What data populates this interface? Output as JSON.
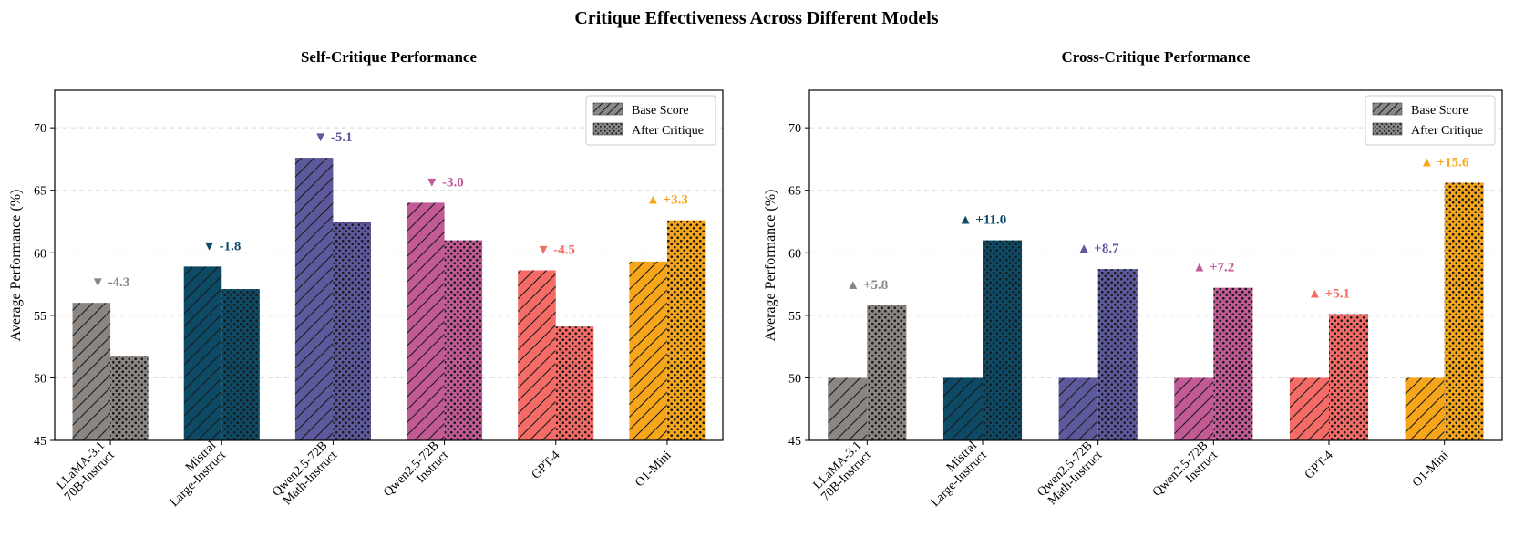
{
  "figure_title": "Critique Effectiveness Across Different Models",
  "chart_data": [
    {
      "type": "bar",
      "title": "Self-Critique Performance",
      "xlabel": "",
      "ylabel": "Average Performance (%)",
      "ylim": [
        45,
        73
      ],
      "yticks": [
        45,
        50,
        55,
        60,
        65,
        70
      ],
      "grid": true,
      "legend_position": "top-right",
      "categories": [
        "LLaMA-3.1\n70B-Instruct",
        "Mistral\nLarge-Instruct",
        "Qwen2.5-72B\nMath-Instruct",
        "Qwen2.5-72B\nInstruct",
        "GPT-4",
        "O1-Mini"
      ],
      "colors": [
        "#8c8682",
        "#0d4a66",
        "#5c5a9c",
        "#c25a96",
        "#f56b66",
        "#f7a61c"
      ],
      "series": [
        {
          "name": "Base Score",
          "pattern": "hatch",
          "values": [
            56.0,
            58.9,
            67.6,
            64.0,
            58.6,
            59.3
          ]
        },
        {
          "name": "After Critique",
          "pattern": "dots",
          "values": [
            51.7,
            57.1,
            62.5,
            61.0,
            54.1,
            62.6
          ]
        }
      ],
      "annotations": [
        "▼ -4.3",
        "▼ -1.8",
        "▼ -5.1",
        "▼ -3.0",
        "▼ -4.5",
        "▲ +3.3"
      ]
    },
    {
      "type": "bar",
      "title": "Cross-Critique Performance",
      "xlabel": "",
      "ylabel": "Average Performance (%)",
      "ylim": [
        45,
        73
      ],
      "yticks": [
        45,
        50,
        55,
        60,
        65,
        70
      ],
      "grid": true,
      "legend_position": "top-right",
      "categories": [
        "LLaMA-3.1\n70B-Instruct",
        "Mistral\nLarge-Instruct",
        "Qwen2.5-72B\nMath-Instruct",
        "Qwen2.5-72B\nInstruct",
        "GPT-4",
        "O1-Mini"
      ],
      "colors": [
        "#8c8682",
        "#0d4a66",
        "#5c5a9c",
        "#c25a96",
        "#f56b66",
        "#f7a61c"
      ],
      "series": [
        {
          "name": "Base Score",
          "pattern": "hatch",
          "values": [
            50.0,
            50.0,
            50.0,
            50.0,
            50.0,
            50.0
          ]
        },
        {
          "name": "After Critique",
          "pattern": "dots",
          "values": [
            55.8,
            61.0,
            58.7,
            57.2,
            55.1,
            65.6
          ]
        }
      ],
      "annotations": [
        "▲ +5.8",
        "▲ +11.0",
        "▲ +8.7",
        "▲ +7.2",
        "▲ +5.1",
        "▲ +15.6"
      ]
    }
  ]
}
